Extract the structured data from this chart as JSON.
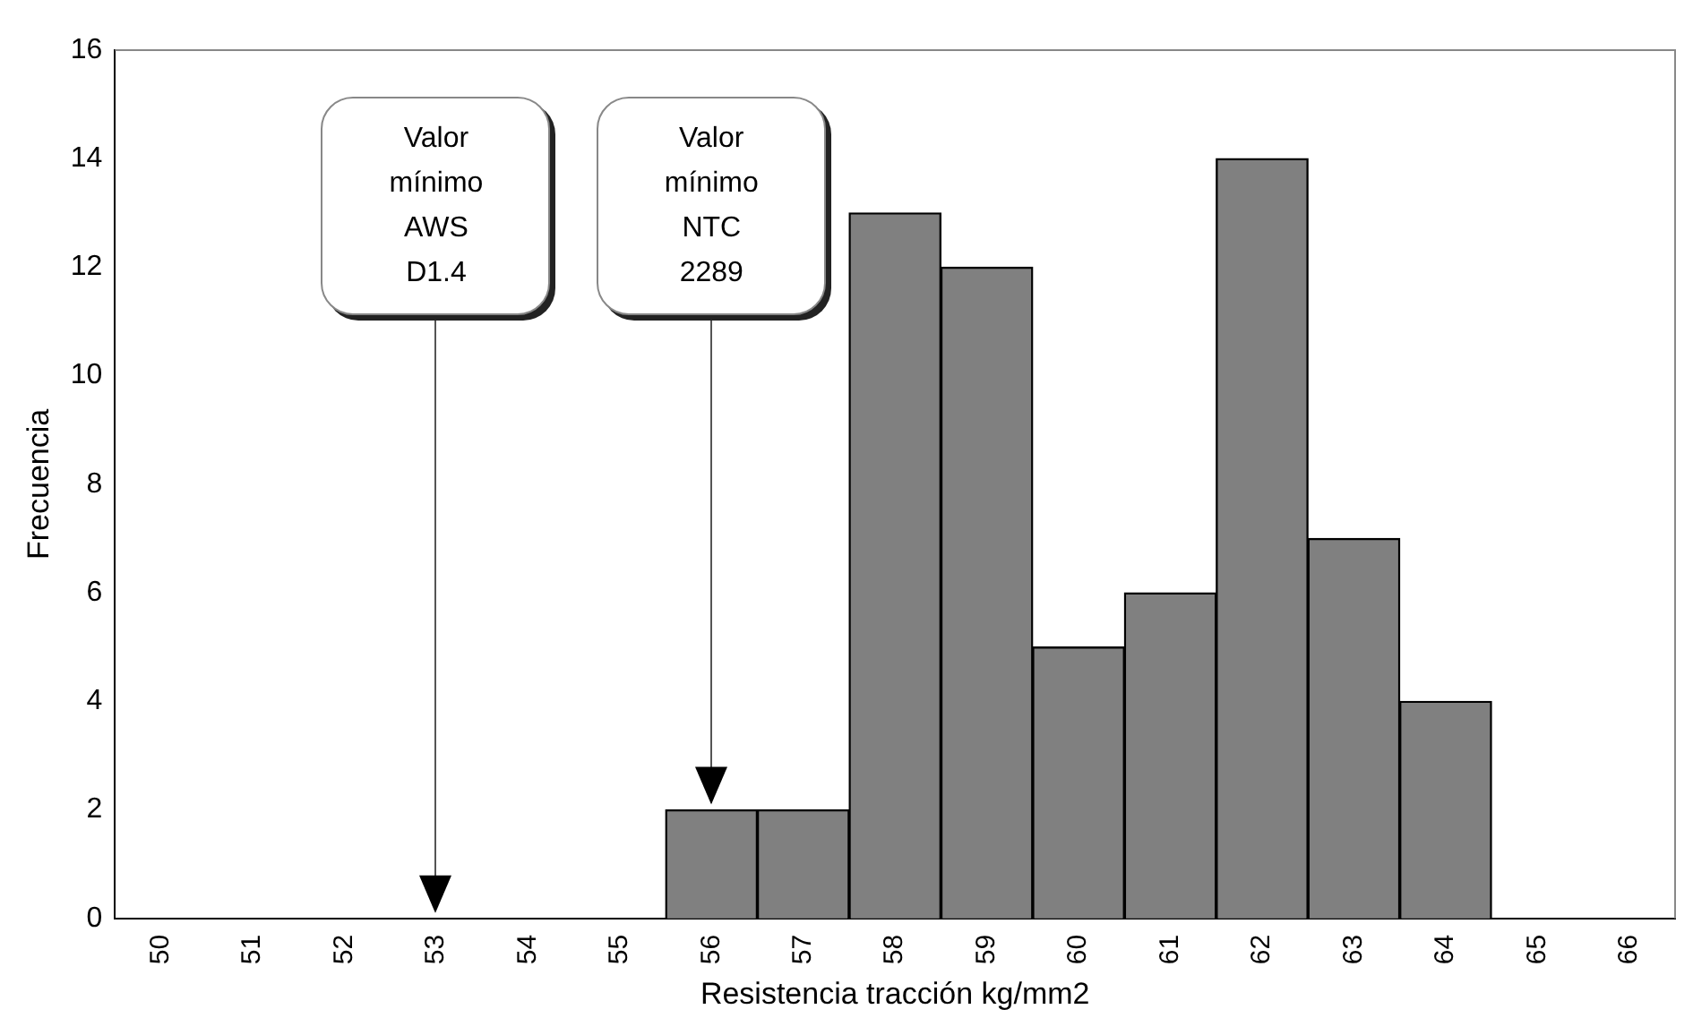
{
  "chart_data": {
    "type": "bar",
    "xlabel": "Resistencia tracción kg/mm2",
    "ylabel": "Frecuencia",
    "categories": [
      "50",
      "51",
      "52",
      "53",
      "54",
      "55",
      "56",
      "57",
      "58",
      "59",
      "60",
      "61",
      "62",
      "63",
      "64",
      "65",
      "66"
    ],
    "values": [
      0,
      0,
      0,
      0,
      0,
      0,
      2,
      2,
      13,
      12,
      5,
      6,
      14,
      7,
      4,
      0,
      0
    ],
    "color": "#808080",
    "ylim": [
      0,
      16
    ],
    "yticks": [
      0,
      2,
      4,
      6,
      8,
      10,
      12,
      14,
      16
    ],
    "grid": false,
    "legend": false,
    "annotations": [
      {
        "text": "Valor mínimo AWS D1.4",
        "x": "53",
        "y": 0
      },
      {
        "text": "Valor mínimo NTC 2289",
        "x": "56",
        "y": 2
      }
    ]
  }
}
